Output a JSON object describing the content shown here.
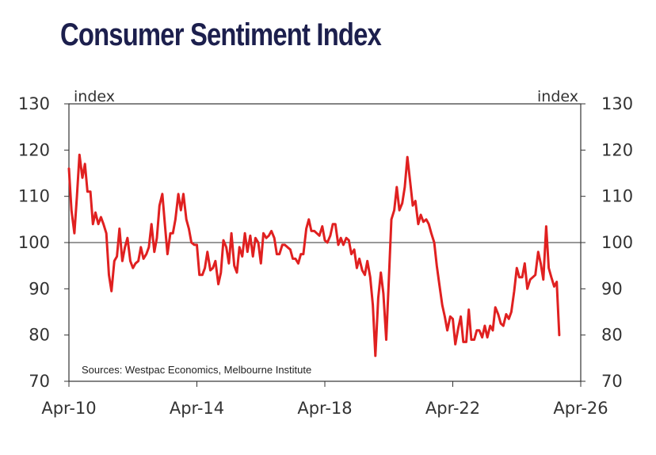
{
  "chart_data": {
    "type": "line",
    "title": "Consumer Sentiment Index",
    "left_unit": "index",
    "right_unit": "index",
    "source": "Sources: Westpac Economics, Melbourne Institute",
    "ylim": [
      70,
      130
    ],
    "yticks": [
      70,
      80,
      90,
      100,
      110,
      120,
      130
    ],
    "xlim": [
      2010.25,
      2026.25
    ],
    "xticks": [
      {
        "label": "Apr-10",
        "x": 2010.25
      },
      {
        "label": "Apr-14",
        "x": 2014.25
      },
      {
        "label": "Apr-18",
        "x": 2018.25
      },
      {
        "label": "Apr-22",
        "x": 2022.25
      },
      {
        "label": "Apr-26",
        "x": 2026.25
      }
    ],
    "reference_line": 100,
    "line_color": "#e02020",
    "series": [
      {
        "points": [
          [
            2010.25,
            116.0
          ],
          [
            2010.33,
            107.0
          ],
          [
            2010.42,
            102.0
          ],
          [
            2010.5,
            110.0
          ],
          [
            2010.58,
            119.0
          ],
          [
            2010.67,
            114.0
          ],
          [
            2010.75,
            117.0
          ],
          [
            2010.83,
            111.0
          ],
          [
            2010.92,
            111.0
          ],
          [
            2011.0,
            104.0
          ],
          [
            2011.08,
            106.5
          ],
          [
            2011.17,
            104.0
          ],
          [
            2011.25,
            105.5
          ],
          [
            2011.33,
            104.0
          ],
          [
            2011.42,
            102.0
          ],
          [
            2011.5,
            93.0
          ],
          [
            2011.58,
            89.5
          ],
          [
            2011.67,
            96.0
          ],
          [
            2011.75,
            97.0
          ],
          [
            2011.83,
            103.0
          ],
          [
            2011.92,
            96.0
          ],
          [
            2012.0,
            99.0
          ],
          [
            2012.08,
            101.0
          ],
          [
            2012.17,
            96.0
          ],
          [
            2012.25,
            94.5
          ],
          [
            2012.33,
            95.5
          ],
          [
            2012.42,
            96.0
          ],
          [
            2012.5,
            99.0
          ],
          [
            2012.58,
            96.5
          ],
          [
            2012.67,
            97.5
          ],
          [
            2012.75,
            99.0
          ],
          [
            2012.83,
            104.0
          ],
          [
            2012.92,
            98.0
          ],
          [
            2013.0,
            101.0
          ],
          [
            2013.08,
            108.0
          ],
          [
            2013.17,
            110.5
          ],
          [
            2013.25,
            104.0
          ],
          [
            2013.33,
            97.5
          ],
          [
            2013.42,
            102.0
          ],
          [
            2013.5,
            102.0
          ],
          [
            2013.58,
            105.0
          ],
          [
            2013.67,
            110.5
          ],
          [
            2013.75,
            107.0
          ],
          [
            2013.83,
            110.5
          ],
          [
            2013.92,
            105.0
          ],
          [
            2014.0,
            103.0
          ],
          [
            2014.08,
            100.0
          ],
          [
            2014.17,
            99.5
          ],
          [
            2014.25,
            99.5
          ],
          [
            2014.33,
            93.0
          ],
          [
            2014.42,
            93.0
          ],
          [
            2014.5,
            94.5
          ],
          [
            2014.58,
            98.0
          ],
          [
            2014.67,
            94.0
          ],
          [
            2014.75,
            94.5
          ],
          [
            2014.83,
            96.0
          ],
          [
            2014.92,
            91.0
          ],
          [
            2015.0,
            93.5
          ],
          [
            2015.08,
            100.5
          ],
          [
            2015.17,
            99.0
          ],
          [
            2015.25,
            95.5
          ],
          [
            2015.33,
            102.0
          ],
          [
            2015.42,
            95.0
          ],
          [
            2015.5,
            93.5
          ],
          [
            2015.58,
            99.0
          ],
          [
            2015.67,
            97.0
          ],
          [
            2015.75,
            102.0
          ],
          [
            2015.83,
            98.0
          ],
          [
            2015.92,
            101.5
          ],
          [
            2016.0,
            97.0
          ],
          [
            2016.08,
            101.0
          ],
          [
            2016.17,
            100.0
          ],
          [
            2016.25,
            95.5
          ],
          [
            2016.33,
            102.0
          ],
          [
            2016.42,
            101.0
          ],
          [
            2016.5,
            101.5
          ],
          [
            2016.58,
            102.5
          ],
          [
            2016.67,
            101.0
          ],
          [
            2016.75,
            97.5
          ],
          [
            2016.83,
            97.5
          ],
          [
            2016.92,
            99.5
          ],
          [
            2017.0,
            99.5
          ],
          [
            2017.08,
            99.0
          ],
          [
            2017.17,
            98.5
          ],
          [
            2017.25,
            96.5
          ],
          [
            2017.33,
            96.5
          ],
          [
            2017.42,
            95.5
          ],
          [
            2017.5,
            97.5
          ],
          [
            2017.58,
            97.5
          ],
          [
            2017.67,
            103.0
          ],
          [
            2017.75,
            105.0
          ],
          [
            2017.83,
            102.5
          ],
          [
            2017.92,
            102.5
          ],
          [
            2018.0,
            102.0
          ],
          [
            2018.08,
            101.5
          ],
          [
            2018.17,
            103.5
          ],
          [
            2018.25,
            100.5
          ],
          [
            2018.33,
            100.0
          ],
          [
            2018.42,
            101.5
          ],
          [
            2018.5,
            104.0
          ],
          [
            2018.58,
            104.0
          ],
          [
            2018.67,
            99.5
          ],
          [
            2018.75,
            101.0
          ],
          [
            2018.83,
            99.5
          ],
          [
            2018.92,
            101.0
          ],
          [
            2019.0,
            100.5
          ],
          [
            2019.08,
            97.5
          ],
          [
            2019.17,
            98.5
          ],
          [
            2019.25,
            94.5
          ],
          [
            2019.33,
            96.5
          ],
          [
            2019.42,
            94.0
          ],
          [
            2019.5,
            93.0
          ],
          [
            2019.58,
            96.0
          ],
          [
            2019.67,
            92.5
          ],
          [
            2019.75,
            86.5
          ],
          [
            2019.83,
            75.5
          ],
          [
            2019.92,
            88.0
          ],
          [
            2020.0,
            93.5
          ],
          [
            2020.08,
            89.0
          ],
          [
            2020.17,
            79.0
          ],
          [
            2020.25,
            92.0
          ],
          [
            2020.33,
            105.0
          ],
          [
            2020.42,
            107.0
          ],
          [
            2020.5,
            112.0
          ],
          [
            2020.58,
            107.0
          ],
          [
            2020.67,
            108.5
          ],
          [
            2020.75,
            112.0
          ],
          [
            2020.83,
            118.5
          ],
          [
            2020.92,
            113.0
          ],
          [
            2021.0,
            108.0
          ],
          [
            2021.08,
            109.0
          ],
          [
            2021.17,
            104.0
          ],
          [
            2021.25,
            106.0
          ],
          [
            2021.33,
            104.5
          ],
          [
            2021.42,
            105.0
          ],
          [
            2021.5,
            104.0
          ],
          [
            2021.58,
            102.0
          ],
          [
            2021.67,
            100.0
          ],
          [
            2021.75,
            95.0
          ],
          [
            2021.83,
            91.0
          ],
          [
            2021.92,
            86.5
          ],
          [
            2022.0,
            84.0
          ],
          [
            2022.08,
            81.0
          ],
          [
            2022.17,
            84.0
          ],
          [
            2022.25,
            83.5
          ],
          [
            2022.33,
            78.0
          ],
          [
            2022.42,
            81.5
          ],
          [
            2022.5,
            84.0
          ],
          [
            2022.58,
            78.5
          ],
          [
            2022.67,
            78.5
          ],
          [
            2022.75,
            85.5
          ],
          [
            2022.83,
            79.0
          ],
          [
            2022.92,
            79.0
          ],
          [
            2023.0,
            81.0
          ],
          [
            2023.08,
            81.0
          ],
          [
            2023.17,
            79.5
          ],
          [
            2023.25,
            82.0
          ],
          [
            2023.33,
            79.5
          ],
          [
            2023.42,
            82.0
          ],
          [
            2023.5,
            81.0
          ],
          [
            2023.58,
            86.0
          ],
          [
            2023.67,
            84.5
          ],
          [
            2023.75,
            82.5
          ],
          [
            2023.83,
            82.0
          ],
          [
            2023.92,
            84.5
          ],
          [
            2024.0,
            83.5
          ],
          [
            2024.08,
            85.0
          ],
          [
            2024.17,
            89.5
          ],
          [
            2024.25,
            94.5
          ],
          [
            2024.33,
            92.5
          ],
          [
            2024.42,
            92.5
          ],
          [
            2024.5,
            95.5
          ],
          [
            2024.58,
            90.0
          ],
          [
            2024.67,
            92.0
          ],
          [
            2024.75,
            92.5
          ],
          [
            2024.83,
            93.0
          ],
          [
            2024.92,
            98.0
          ],
          [
            2025.0,
            95.5
          ],
          [
            2025.08,
            92.0
          ],
          [
            2025.17,
            103.5
          ],
          [
            2025.25,
            94.5
          ],
          [
            2025.33,
            92.5
          ],
          [
            2025.42,
            90.5
          ],
          [
            2025.5,
            91.5
          ],
          [
            2025.58,
            80.0
          ]
        ]
      }
    ]
  }
}
